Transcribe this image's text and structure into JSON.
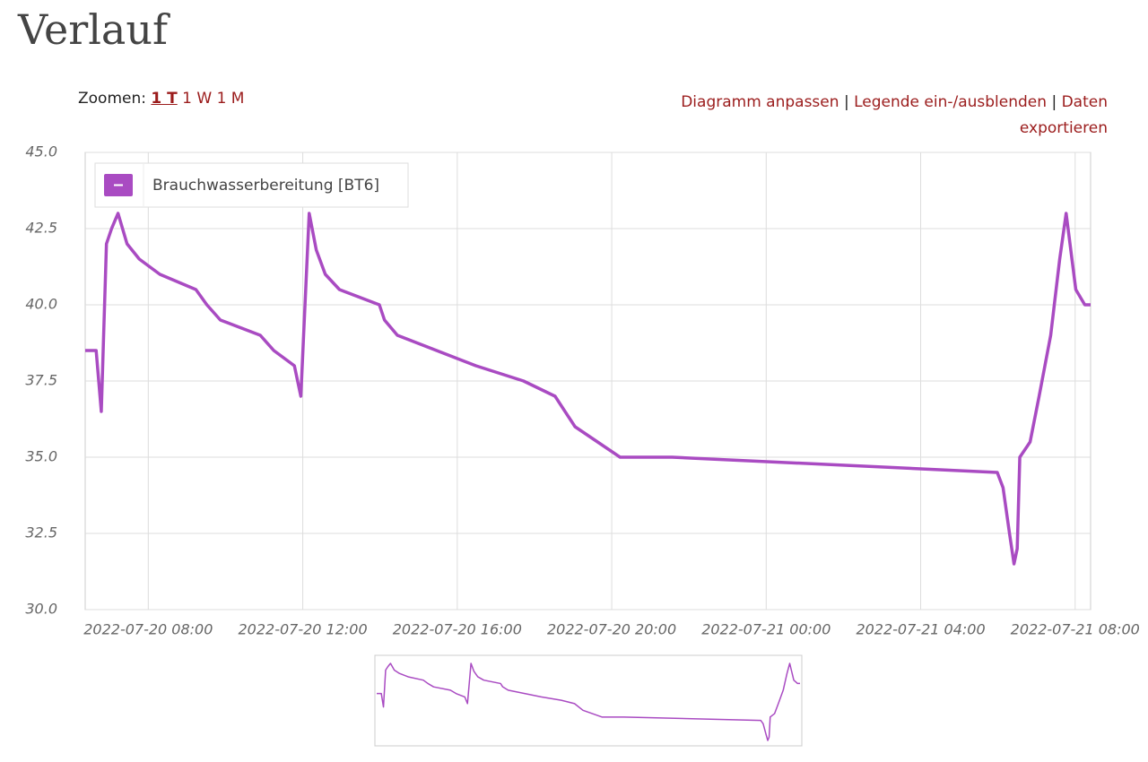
{
  "header": {
    "title": "Verlauf"
  },
  "toolbar": {
    "zoom_label": "Zoomen:",
    "zoom_options": [
      "1 T",
      "1 W",
      "1 M"
    ],
    "links": [
      "Diagramm anpassen",
      "Legende ein-/ausblenden",
      "Daten exportieren"
    ],
    "separator": "|"
  },
  "chart_data": {
    "type": "line",
    "x": [
      "2022-07-20 06:22",
      "2022-07-20 06:39",
      "2022-07-20 06:47",
      "2022-07-20 06:55",
      "2022-07-20 07:03",
      "2022-07-20 07:13",
      "2022-07-20 07:27",
      "2022-07-20 07:46",
      "2022-07-20 08:18",
      "2022-07-20 09:14",
      "2022-07-20 09:31",
      "2022-07-20 09:52",
      "2022-07-20 10:54",
      "2022-07-20 11:15",
      "2022-07-20 11:47",
      "2022-07-20 11:57",
      "2022-07-20 12:10",
      "2022-07-20 12:21",
      "2022-07-20 12:35",
      "2022-07-20 12:57",
      "2022-07-20 13:59",
      "2022-07-20 14:07",
      "2022-07-20 14:27",
      "2022-07-20 16:29",
      "2022-07-20 17:43",
      "2022-07-20 18:32",
      "2022-07-20 19:03",
      "2022-07-20 20:13",
      "2022-07-20 21:34",
      "2022-07-21 05:59",
      "2022-07-21 06:08",
      "2022-07-21 06:18",
      "2022-07-21 06:25",
      "2022-07-21 06:30",
      "2022-07-21 06:34",
      "2022-07-21 06:50",
      "2022-07-21 07:04",
      "2022-07-21 07:22",
      "2022-07-21 07:36",
      "2022-07-21 07:46",
      "2022-07-21 08:01",
      "2022-07-21 08:15",
      "2022-07-21 08:24"
    ],
    "series": [
      {
        "name": "Brauchwasserbereitung [BT6]",
        "color": "#a94bc2",
        "values": [
          38.5,
          38.5,
          36.5,
          42.0,
          42.5,
          43.0,
          42.0,
          41.5,
          41.0,
          40.5,
          40.0,
          39.5,
          39.0,
          38.5,
          38.0,
          37.0,
          43.0,
          41.8,
          41.0,
          40.5,
          40.0,
          39.5,
          39.0,
          38.0,
          37.5,
          37.0,
          36.0,
          35.0,
          35.0,
          34.5,
          34.0,
          32.5,
          31.5,
          32.0,
          35.0,
          35.5,
          37.0,
          39.0,
          41.5,
          43.0,
          40.5,
          40.0,
          40.0
        ]
      }
    ],
    "xlim": [
      "2022-07-20 06:22",
      "2022-07-21 08:24"
    ],
    "xticks": [
      "2022-07-20 08:00",
      "2022-07-20 12:00",
      "2022-07-20 16:00",
      "2022-07-20 20:00",
      "2022-07-21 00:00",
      "2022-07-21 04:00",
      "2022-07-21 08:00"
    ],
    "ylim": [
      30,
      45
    ],
    "yticks": [
      {
        "value": 30,
        "label": "30.0"
      },
      32.5,
      {
        "value": 35,
        "label": "35.0"
      },
      37.5,
      {
        "value": 40,
        "label": "40.0"
      },
      42.5,
      {
        "value": 45,
        "label": "45.0"
      }
    ],
    "grid": true,
    "legend": "upper left"
  }
}
